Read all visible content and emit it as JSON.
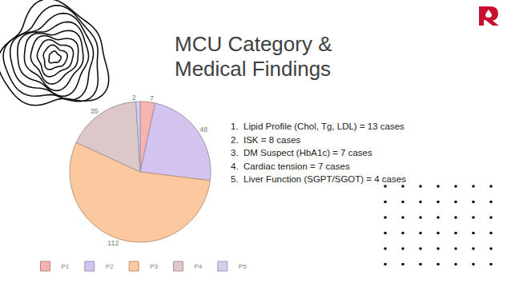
{
  "chart_data": {
    "type": "pie",
    "categories": [
      "P1",
      "P2",
      "P3",
      "P4",
      "P5"
    ],
    "values": [
      7,
      48,
      112,
      35,
      2
    ],
    "colors": [
      "#f7b3ae",
      "#d2c3ef",
      "#fbc8a0",
      "#dcc7c9",
      "#cfd0ec"
    ],
    "data_labels": true,
    "legend": "bottom"
  },
  "title": [
    "MCU Category &",
    "Medical Findings"
  ],
  "findings": [
    {
      "number": "1.",
      "text": "Lipid Profile (Chol, Tg, LDL) = 13 cases"
    },
    {
      "number": "2.",
      "text": "ISK = 8 cases"
    },
    {
      "number": "3.",
      "text": "DM Suspect (HbA1c) = 7 cases"
    },
    {
      "number": "4.",
      "text": "Cardiac tension = 7 cases"
    },
    {
      "number": "5.",
      "text": "Liver Function (SGPT/SGOT) = 4 cases"
    }
  ]
}
